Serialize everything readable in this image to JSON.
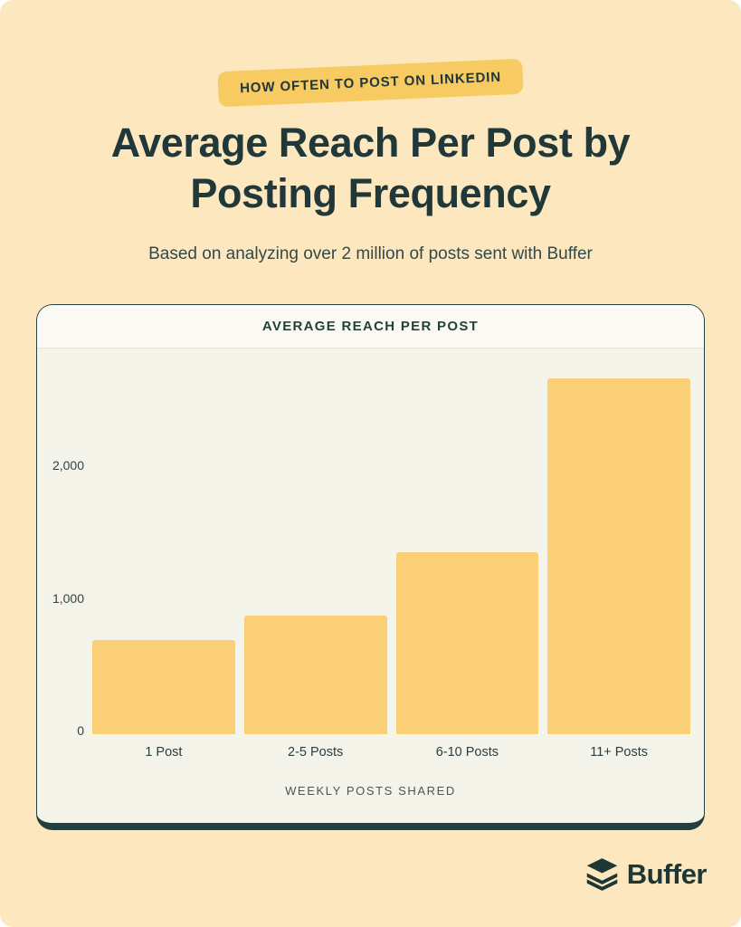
{
  "page": {
    "badge": "HOW OFTEN TO POST ON LINKEDIN",
    "title_line1": "Average Reach Per Post by",
    "title_line2": "Posting Frequency",
    "subtitle": "Based on analyzing over 2 million of posts sent with Buffer",
    "footer_brand": "Buffer"
  },
  "colors": {
    "page_background": "#FDE7BE",
    "badge_background": "#F7CA62",
    "dark_text": "#203839",
    "card_background": "#F5F4EB",
    "card_header_background": "#FAF9F3",
    "card_border": "#23403E",
    "bar_color": "#FACF75",
    "brand_color": "#1E3634"
  },
  "chart_data": {
    "type": "bar",
    "title": "AVERAGE REACH PER POST",
    "categories": [
      "1 Post",
      "2-5 Posts",
      "6-10 Posts",
      "11+ Posts"
    ],
    "values": [
      710,
      895,
      1370,
      2680
    ],
    "xlabel": "WEEKLY POSTS SHARED",
    "ylabel": "",
    "yticks": [
      0,
      1000,
      2000
    ],
    "ytick_labels": [
      "0",
      "1,000",
      "2,000"
    ],
    "ylim": [
      0,
      2900
    ],
    "grid": false,
    "legend": null,
    "bar_color": "#FACF75"
  }
}
